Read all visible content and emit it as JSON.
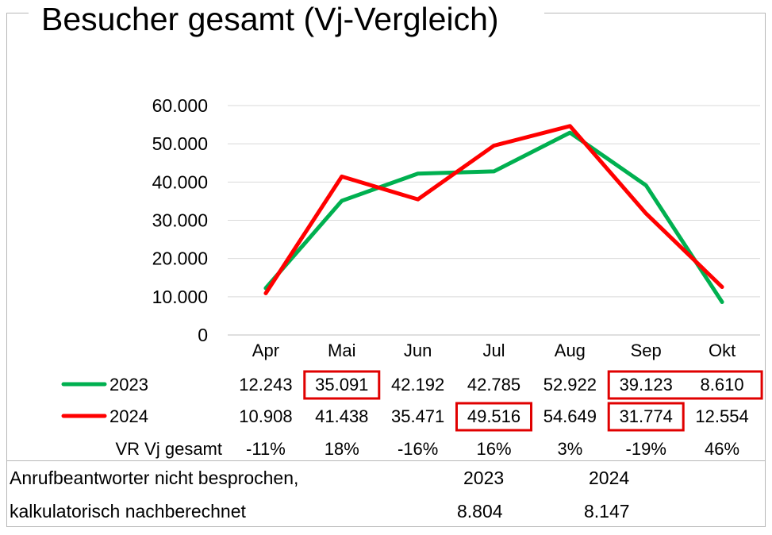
{
  "chart_data": {
    "type": "line",
    "title": "Besucher gesamt (Vj-Vergleich)",
    "categories": [
      "Apr",
      "Mai",
      "Jun",
      "Jul",
      "Aug",
      "Sep",
      "Okt"
    ],
    "ylim": [
      0,
      60000
    ],
    "yticks": [
      "0",
      "10.000",
      "20.000",
      "30.000",
      "40.000",
      "50.000",
      "60.000"
    ],
    "grid": true,
    "legend_placement": "data-table",
    "series": [
      {
        "name": "2023",
        "color": "#00b050",
        "values": [
          12243,
          35091,
          42192,
          42785,
          52922,
          39123,
          8610
        ],
        "labels": [
          "12.243",
          "35.091",
          "42.192",
          "42.785",
          "52.922",
          "39.123",
          "8.610"
        ]
      },
      {
        "name": "2024",
        "color": "#ff0000",
        "values": [
          10908,
          41438,
          35471,
          49516,
          54649,
          31774,
          12554
        ],
        "labels": [
          "10.908",
          "41.438",
          "35.471",
          "49.516",
          "54.649",
          "31.774",
          "12.554"
        ]
      }
    ],
    "change_row": {
      "label": "VR Vj gesamt",
      "values": [
        "-11%",
        "18%",
        "-16%",
        "16%",
        "3%",
        "-19%",
        "46%"
      ]
    },
    "highlight_color": "#e00000"
  },
  "footer": {
    "line1": "Anrufbeantworter nicht besprochen,",
    "line2": "kalkulatorisch nachberechnet",
    "year_a": "2023",
    "year_b": "2024",
    "value_a": "8.804",
    "value_b": "8.147"
  }
}
